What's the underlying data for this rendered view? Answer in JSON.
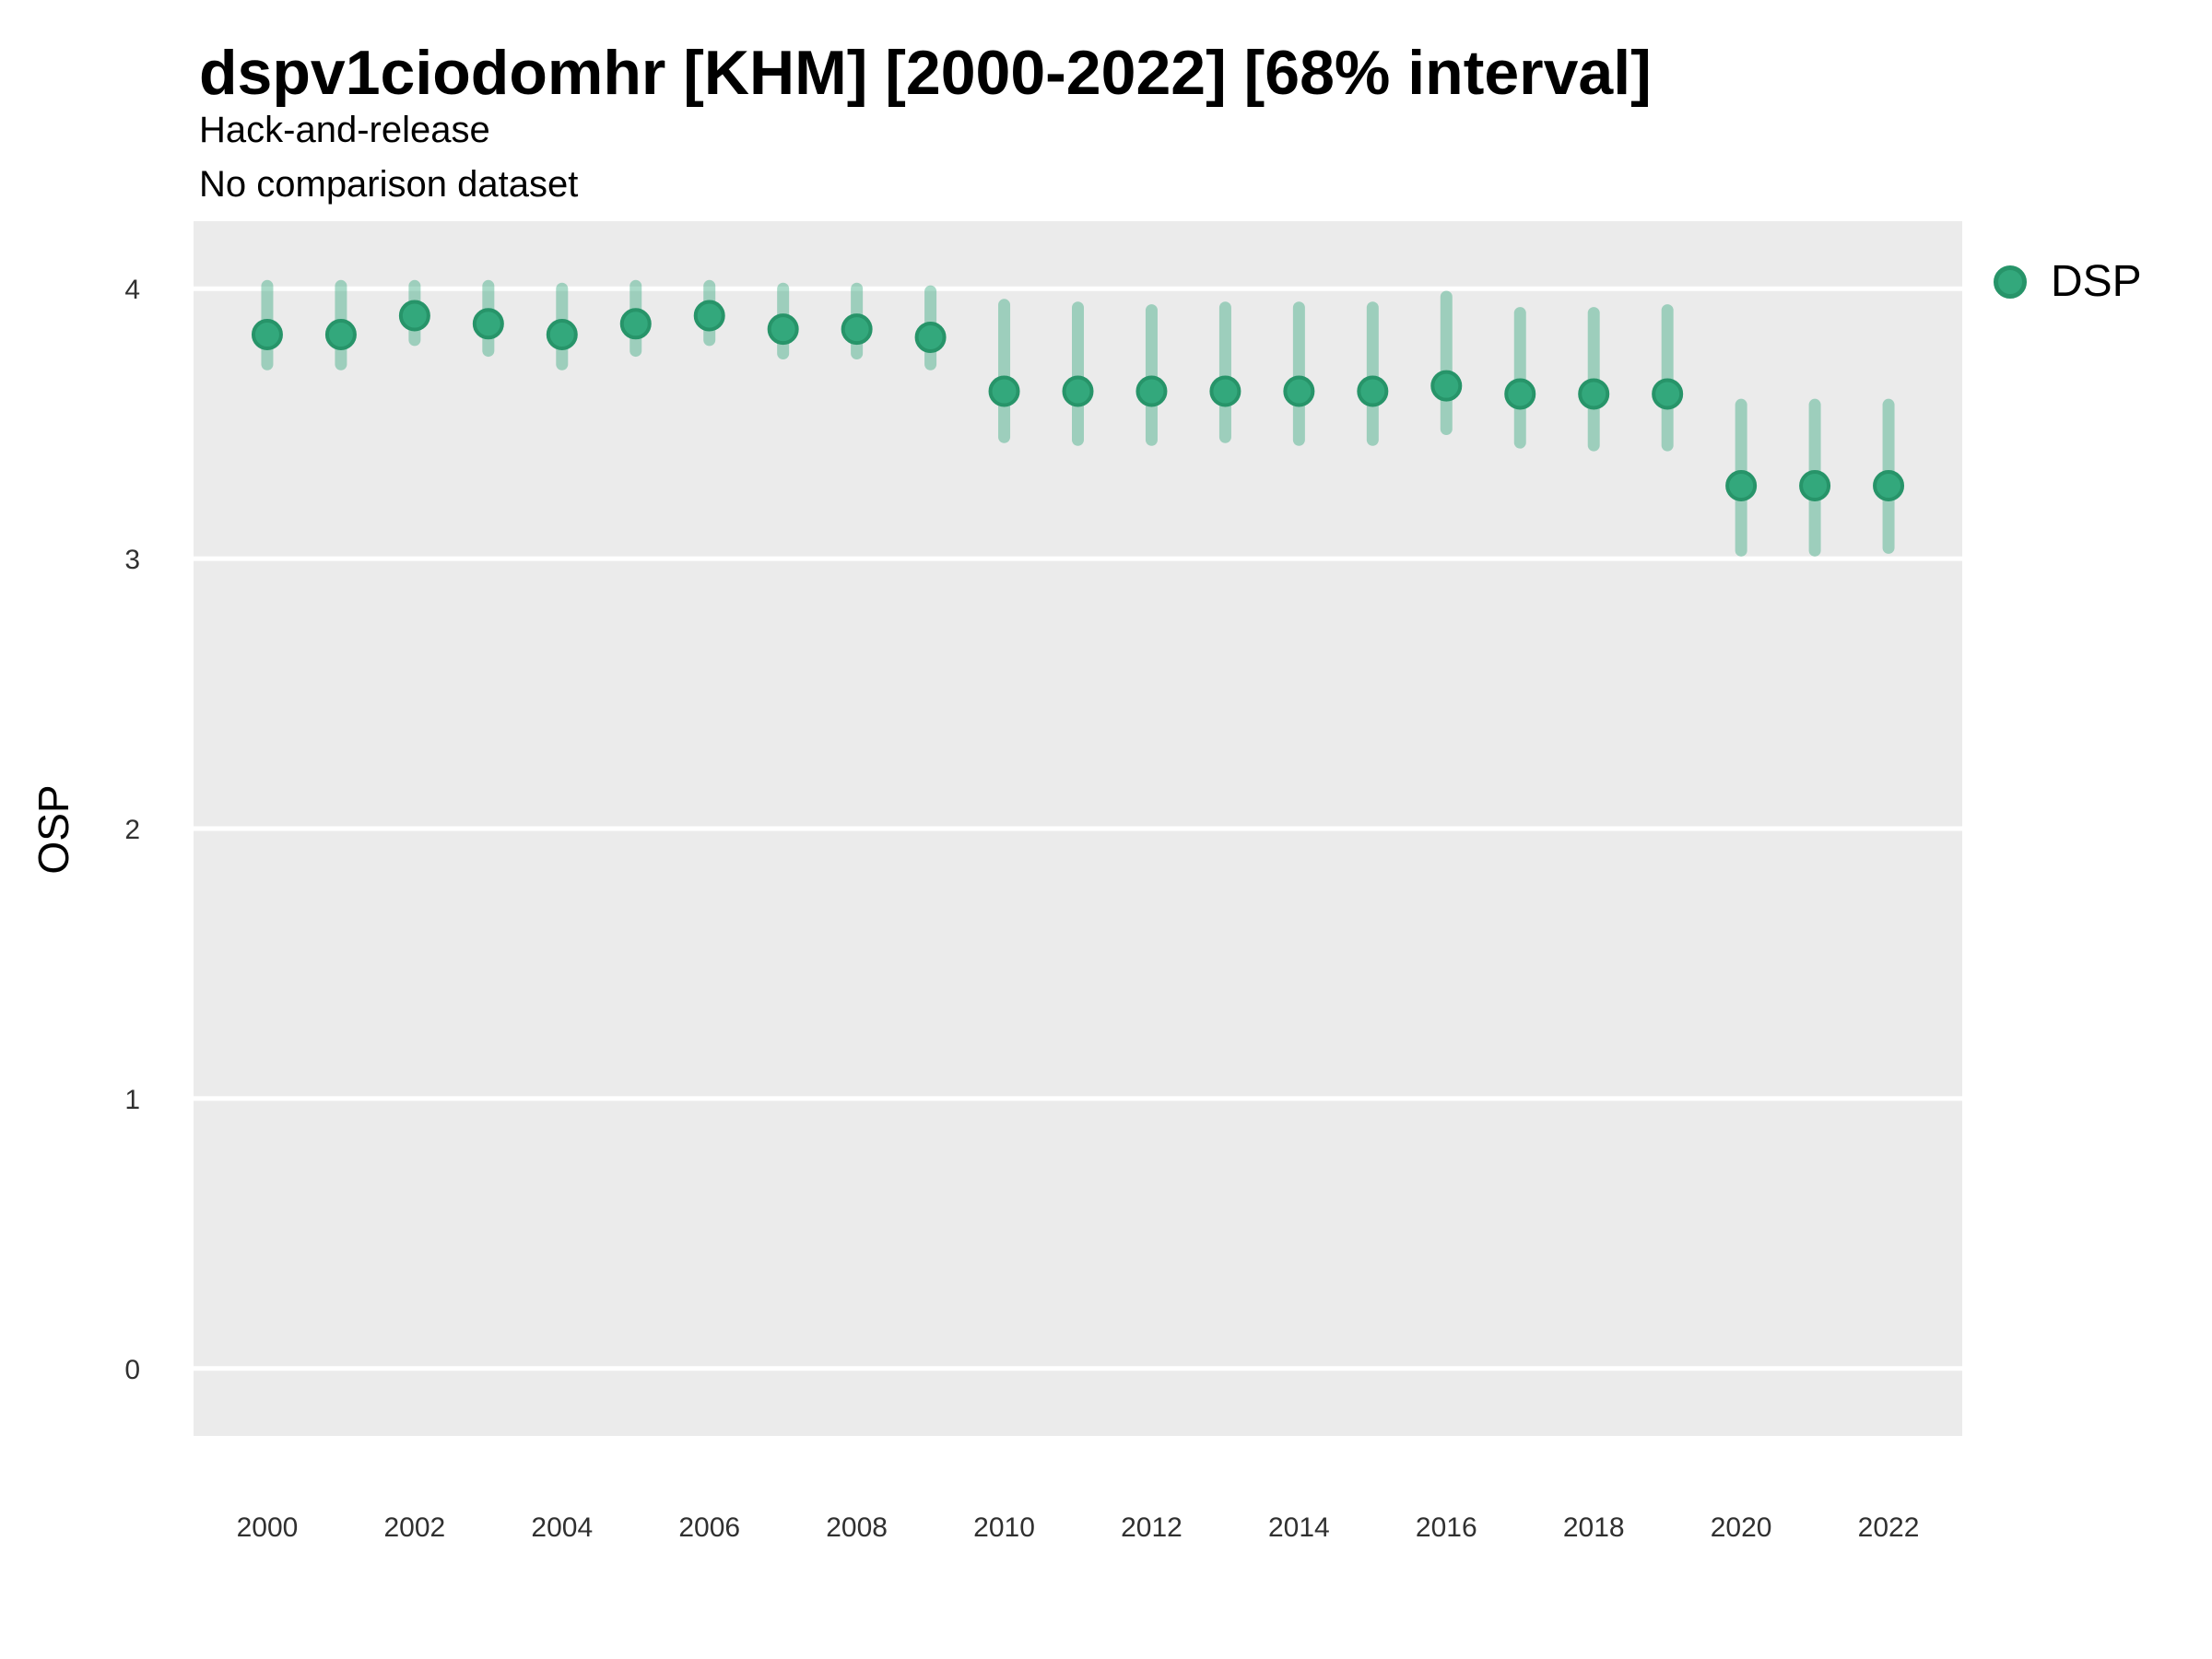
{
  "header": {
    "title": "dspv1ciodomhr [KHM] [2000-2022] [68% interval]",
    "subtitle": "Hack-and-release",
    "note": "No comparison dataset"
  },
  "legend": {
    "label": "DSP",
    "position": "right"
  },
  "axes": {
    "y_title": "OSP"
  },
  "colors": {
    "panel_background": "#ebebeb",
    "gridline": "#ffffff",
    "point_fill": "#33a87c",
    "point_ring": "#279469",
    "interval_bar": "rgba(51,168,124,0.42)",
    "tick_text": "#303030",
    "title_text": "#000000"
  },
  "chart_data": {
    "type": "scatter",
    "subtype": "pointrange-errorbar",
    "title": "dspv1ciodomhr [KHM] [2000-2022] [68% interval]",
    "subtitle": "Hack-and-release",
    "note": "No comparison dataset",
    "interval_level": "68%",
    "xlabel": "",
    "ylabel": "OSP",
    "xlim": [
      1999,
      2023
    ],
    "ylim": [
      -0.25,
      4.25
    ],
    "xticks": [
      2000,
      2002,
      2004,
      2006,
      2008,
      2010,
      2012,
      2014,
      2016,
      2018,
      2020,
      2022
    ],
    "yticks": [
      0,
      1,
      2,
      3,
      4
    ],
    "grid": "major-y-only",
    "legend_position": "right",
    "series": [
      {
        "name": "DSP",
        "color": "#33a87c",
        "x": [
          2000,
          2001,
          2002,
          2003,
          2004,
          2005,
          2006,
          2007,
          2008,
          2009,
          2010,
          2011,
          2012,
          2013,
          2014,
          2015,
          2016,
          2017,
          2018,
          2019,
          2020,
          2021,
          2022
        ],
        "y": [
          3.83,
          3.83,
          3.9,
          3.87,
          3.83,
          3.87,
          3.9,
          3.85,
          3.85,
          3.82,
          3.62,
          3.62,
          3.62,
          3.62,
          3.62,
          3.62,
          3.64,
          3.61,
          3.61,
          3.61,
          3.27,
          3.27,
          3.27
        ],
        "lo": [
          3.72,
          3.72,
          3.81,
          3.77,
          3.72,
          3.77,
          3.81,
          3.76,
          3.76,
          3.72,
          3.45,
          3.44,
          3.44,
          3.45,
          3.44,
          3.44,
          3.48,
          3.43,
          3.42,
          3.42,
          3.03,
          3.03,
          3.04
        ],
        "hi": [
          4.01,
          4.01,
          4.01,
          4.01,
          4.0,
          4.01,
          4.01,
          4.0,
          4.0,
          3.99,
          3.94,
          3.93,
          3.92,
          3.93,
          3.93,
          3.93,
          3.97,
          3.91,
          3.91,
          3.92,
          3.57,
          3.57,
          3.57
        ]
      }
    ]
  }
}
